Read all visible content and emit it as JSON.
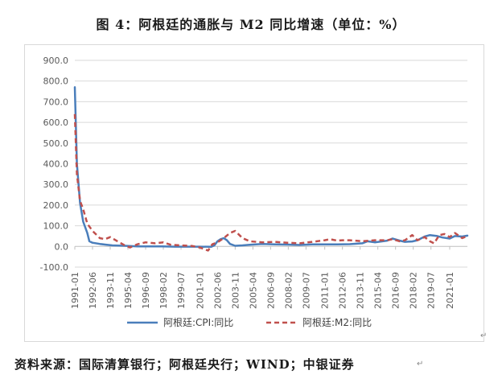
{
  "figure": {
    "title": "图 4：阿根廷的通胀与 M2 同比增速（单位：%）",
    "source": "资料来源：国际清算银行；阿根廷央行；WIND；中银证券"
  },
  "colors": {
    "cpi": "#4a7ebb",
    "m2": "#c0504d",
    "grid": "#d9d9d9",
    "axis": "#595959"
  },
  "chart_data": {
    "type": "line",
    "title": "",
    "xlabel": "",
    "ylabel": "",
    "ylim": [
      -100,
      900
    ],
    "yticks": [
      "900.0",
      "800.0",
      "700.0",
      "600.0",
      "500.0",
      "400.0",
      "300.0",
      "200.0",
      "100.0",
      "0.0",
      "-100.0"
    ],
    "xticks": [
      "1991-01",
      "1992-06",
      "1993-11",
      "1995-04",
      "1996-09",
      "1998-02",
      "1999-07",
      "2001-01",
      "2002-06",
      "2003-11",
      "2005-04",
      "2006-09",
      "2008-02",
      "2009-07",
      "2011-01",
      "2012-06",
      "2013-11",
      "2015-04",
      "2016-09",
      "2018-02",
      "2019-07",
      "2021-01"
    ],
    "x_range": [
      "1991-01",
      "2022-06"
    ],
    "grid": true,
    "legend_position": "bottom",
    "series": [
      {
        "name": "阿根廷:CPI:同比",
        "style": "solid",
        "points": [
          [
            "1991-01",
            770
          ],
          [
            "1991-03",
            400
          ],
          [
            "1991-06",
            210
          ],
          [
            "1991-09",
            120
          ],
          [
            "1992-01",
            65
          ],
          [
            "1992-03",
            25
          ],
          [
            "1992-06",
            18
          ],
          [
            "1993-01",
            12
          ],
          [
            "1993-06",
            9
          ],
          [
            "1994-01",
            5
          ],
          [
            "1995-01",
            3
          ],
          [
            "1996-01",
            0
          ],
          [
            "1997-01",
            0
          ],
          [
            "1998-01",
            0
          ],
          [
            "1999-01",
            -1
          ],
          [
            "2000-01",
            -1
          ],
          [
            "2001-01",
            -1
          ],
          [
            "2001-12",
            -2
          ],
          [
            "2002-03",
            5
          ],
          [
            "2002-06",
            25
          ],
          [
            "2002-09",
            35
          ],
          [
            "2002-12",
            40
          ],
          [
            "2003-03",
            30
          ],
          [
            "2003-06",
            12
          ],
          [
            "2003-11",
            3
          ],
          [
            "2004-06",
            5
          ],
          [
            "2005-01",
            8
          ],
          [
            "2006-01",
            12
          ],
          [
            "2007-01",
            10
          ],
          [
            "2008-01",
            9
          ],
          [
            "2009-01",
            7
          ],
          [
            "2010-01",
            10
          ],
          [
            "2011-01",
            10
          ],
          [
            "2012-01",
            10
          ],
          [
            "2013-01",
            11
          ],
          [
            "2014-01",
            15
          ],
          [
            "2014-06",
            25
          ],
          [
            "2015-01",
            20
          ],
          [
            "2016-01",
            28
          ],
          [
            "2016-06",
            38
          ],
          [
            "2017-01",
            28
          ],
          [
            "2017-06",
            22
          ],
          [
            "2018-01",
            24
          ],
          [
            "2018-06",
            30
          ],
          [
            "2019-01",
            48
          ],
          [
            "2019-06",
            55
          ],
          [
            "2020-01",
            50
          ],
          [
            "2020-06",
            43
          ],
          [
            "2021-01",
            38
          ],
          [
            "2021-06",
            50
          ],
          [
            "2022-01",
            48
          ],
          [
            "2022-06",
            52
          ]
        ]
      },
      {
        "name": "阿根廷:M2:同比",
        "style": "dashed",
        "points": [
          [
            "1991-01",
            640
          ],
          [
            "1991-03",
            350
          ],
          [
            "1991-06",
            220
          ],
          [
            "1991-09",
            180
          ],
          [
            "1992-01",
            110
          ],
          [
            "1992-06",
            75
          ],
          [
            "1993-01",
            40
          ],
          [
            "1993-06",
            35
          ],
          [
            "1993-11",
            45
          ],
          [
            "1994-06",
            25
          ],
          [
            "1995-01",
            5
          ],
          [
            "1995-06",
            -5
          ],
          [
            "1996-01",
            10
          ],
          [
            "1996-09",
            20
          ],
          [
            "1997-06",
            15
          ],
          [
            "1998-02",
            20
          ],
          [
            "1998-09",
            8
          ],
          [
            "1999-07",
            5
          ],
          [
            "2000-06",
            2
          ],
          [
            "2001-01",
            -5
          ],
          [
            "2001-09",
            -20
          ],
          [
            "2002-01",
            10
          ],
          [
            "2002-06",
            20
          ],
          [
            "2002-12",
            40
          ],
          [
            "2003-06",
            65
          ],
          [
            "2003-11",
            75
          ],
          [
            "2004-06",
            40
          ],
          [
            "2005-01",
            25
          ],
          [
            "2006-01",
            20
          ],
          [
            "2007-01",
            22
          ],
          [
            "2008-01",
            18
          ],
          [
            "2009-01",
            15
          ],
          [
            "2010-01",
            22
          ],
          [
            "2011-01",
            30
          ],
          [
            "2011-06",
            35
          ],
          [
            "2012-01",
            28
          ],
          [
            "2012-06",
            30
          ],
          [
            "2013-01",
            30
          ],
          [
            "2014-01",
            25
          ],
          [
            "2015-01",
            30
          ],
          [
            "2016-01",
            30
          ],
          [
            "2016-06",
            35
          ],
          [
            "2017-01",
            25
          ],
          [
            "2017-06",
            30
          ],
          [
            "2018-01",
            55
          ],
          [
            "2018-06",
            30
          ],
          [
            "2019-01",
            45
          ],
          [
            "2019-06",
            25
          ],
          [
            "2019-10",
            15
          ],
          [
            "2020-03",
            55
          ],
          [
            "2020-08",
            60
          ],
          [
            "2021-01",
            45
          ],
          [
            "2021-06",
            65
          ],
          [
            "2022-01",
            40
          ],
          [
            "2022-06",
            50
          ]
        ]
      }
    ]
  }
}
